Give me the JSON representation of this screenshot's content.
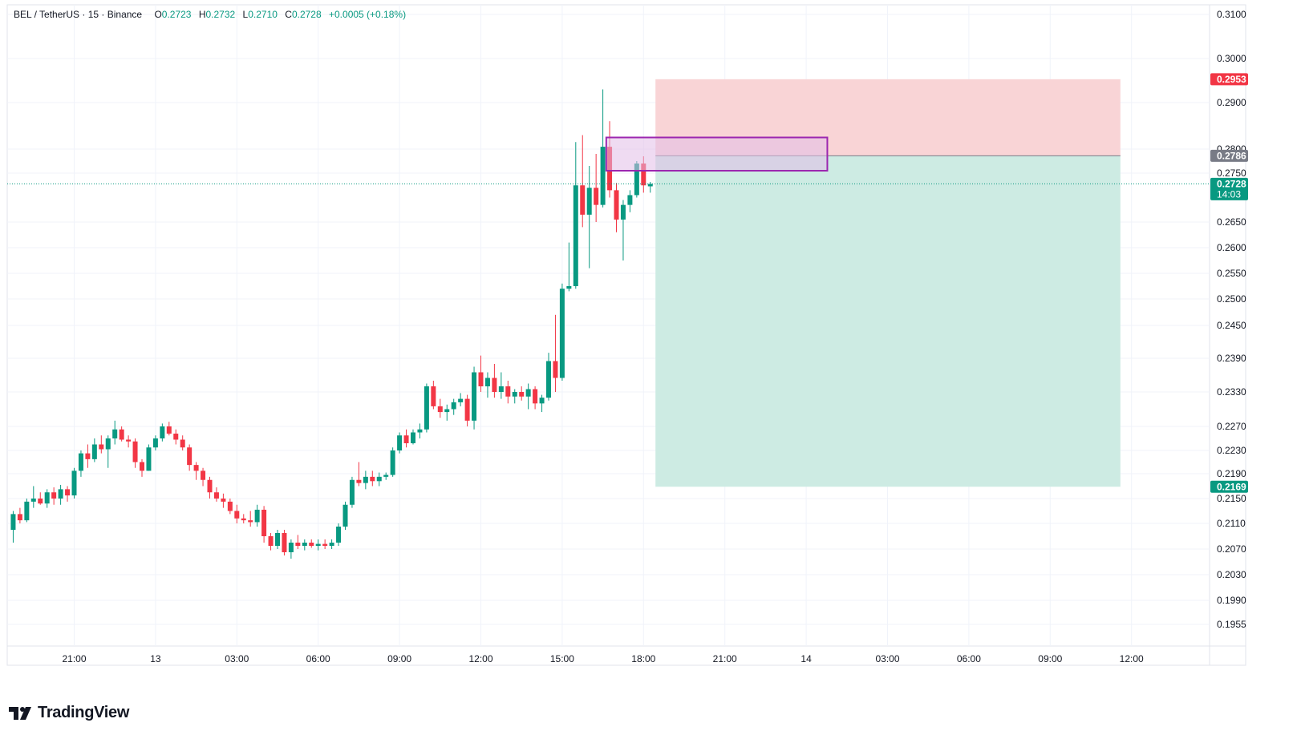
{
  "header": {
    "symbol": "BEL / TetherUS · 15 · Binance",
    "open_key": "O",
    "open": "0.2723",
    "high_key": "H",
    "high": "0.2732",
    "low_key": "L",
    "low": "0.2710",
    "close_key": "C",
    "close": "0.2728",
    "change": "+0.0005 (+0.18%)"
  },
  "brand": {
    "name": "TradingView",
    "icon": "tradingview-logo-icon"
  },
  "colors": {
    "up": "#089981",
    "down": "#f23645",
    "grid": "#f0f3fa",
    "stop_zone": "#f9d4d6",
    "target_zone": "#cdebe3",
    "box_border": "#9c27b0",
    "box_fill": "#e1bee7",
    "entry_badge": "#787b86"
  },
  "chart_data": {
    "type": "candlestick",
    "symbol": "BEL / TetherUS",
    "interval": "15",
    "exchange": "Binance",
    "ohlc_legend": {
      "open": 0.2723,
      "high": 0.2732,
      "low": 0.271,
      "close": 0.2728,
      "change": 0.0005,
      "change_pct": 0.18
    },
    "y_axis": {
      "ticks": [
        "0.3100",
        "0.3000",
        "0.2900",
        "0.2800",
        "0.2750",
        "0.2650",
        "0.2600",
        "0.2550",
        "0.2500",
        "0.2450",
        "0.2390",
        "0.2330",
        "0.2270",
        "0.2230",
        "0.2190",
        "0.2150",
        "0.2110",
        "0.2070",
        "0.2030",
        "0.1990",
        "0.1955"
      ],
      "position": "right"
    },
    "x_axis": {
      "ticks": [
        {
          "label": "21:00",
          "t": 0
        },
        {
          "label": "13",
          "t": 12
        },
        {
          "label": "03:00",
          "t": 24
        },
        {
          "label": "06:00",
          "t": 36
        },
        {
          "label": "09:00",
          "t": 48
        },
        {
          "label": "12:00",
          "t": 60
        },
        {
          "label": "15:00",
          "t": 72
        },
        {
          "label": "18:00",
          "t": 84
        },
        {
          "label": "21:00",
          "t": 96
        },
        {
          "label": "14",
          "t": 108
        },
        {
          "label": "03:00",
          "t": 120
        },
        {
          "label": "06:00",
          "t": 132
        },
        {
          "label": "09:00",
          "t": 144
        },
        {
          "label": "12:00",
          "t": 156
        }
      ]
    },
    "candles": [
      {
        "t": -10,
        "o": 0.208,
        "h": 0.2105,
        "l": 0.206,
        "c": 0.21
      },
      {
        "t": -9,
        "o": 0.21,
        "h": 0.213,
        "l": 0.208,
        "c": 0.2125
      },
      {
        "t": -8,
        "o": 0.2125,
        "h": 0.2135,
        "l": 0.211,
        "c": 0.2115
      },
      {
        "t": -7,
        "o": 0.2115,
        "h": 0.215,
        "l": 0.2112,
        "c": 0.2145
      },
      {
        "t": -6,
        "o": 0.2145,
        "h": 0.217,
        "l": 0.2135,
        "c": 0.215
      },
      {
        "t": -5,
        "o": 0.215,
        "h": 0.216,
        "l": 0.214,
        "c": 0.2142
      },
      {
        "t": -4,
        "o": 0.2142,
        "h": 0.2165,
        "l": 0.2135,
        "c": 0.216
      },
      {
        "t": -3,
        "o": 0.216,
        "h": 0.2168,
        "l": 0.214,
        "c": 0.215
      },
      {
        "t": -2,
        "o": 0.215,
        "h": 0.2172,
        "l": 0.214,
        "c": 0.2165
      },
      {
        "t": -1,
        "o": 0.2165,
        "h": 0.217,
        "l": 0.2145,
        "c": 0.2155
      },
      {
        "t": 0,
        "o": 0.2155,
        "h": 0.22,
        "l": 0.215,
        "c": 0.2195
      },
      {
        "t": 1,
        "o": 0.2195,
        "h": 0.223,
        "l": 0.2185,
        "c": 0.2225
      },
      {
        "t": 2,
        "o": 0.2225,
        "h": 0.224,
        "l": 0.22,
        "c": 0.2215
      },
      {
        "t": 3,
        "o": 0.2215,
        "h": 0.225,
        "l": 0.221,
        "c": 0.224
      },
      {
        "t": 4,
        "o": 0.224,
        "h": 0.2255,
        "l": 0.2225,
        "c": 0.2232
      },
      {
        "t": 5,
        "o": 0.2232,
        "h": 0.2255,
        "l": 0.22,
        "c": 0.225
      },
      {
        "t": 6,
        "o": 0.225,
        "h": 0.228,
        "l": 0.224,
        "c": 0.2265
      },
      {
        "t": 7,
        "o": 0.2265,
        "h": 0.227,
        "l": 0.2245,
        "c": 0.2248
      },
      {
        "t": 8,
        "o": 0.2248,
        "h": 0.2255,
        "l": 0.2235,
        "c": 0.2245
      },
      {
        "t": 9,
        "o": 0.2245,
        "h": 0.225,
        "l": 0.22,
        "c": 0.221
      },
      {
        "t": 10,
        "o": 0.221,
        "h": 0.2215,
        "l": 0.2185,
        "c": 0.2195
      },
      {
        "t": 11,
        "o": 0.2195,
        "h": 0.224,
        "l": 0.2195,
        "c": 0.2235
      },
      {
        "t": 12,
        "o": 0.2235,
        "h": 0.2255,
        "l": 0.223,
        "c": 0.225
      },
      {
        "t": 13,
        "o": 0.225,
        "h": 0.2275,
        "l": 0.2245,
        "c": 0.227
      },
      {
        "t": 14,
        "o": 0.227,
        "h": 0.2278,
        "l": 0.2255,
        "c": 0.2258
      },
      {
        "t": 15,
        "o": 0.2258,
        "h": 0.2265,
        "l": 0.224,
        "c": 0.2248
      },
      {
        "t": 16,
        "o": 0.2248,
        "h": 0.2255,
        "l": 0.223,
        "c": 0.2235
      },
      {
        "t": 17,
        "o": 0.2235,
        "h": 0.224,
        "l": 0.2195,
        "c": 0.2205
      },
      {
        "t": 18,
        "o": 0.2205,
        "h": 0.221,
        "l": 0.218,
        "c": 0.2195
      },
      {
        "t": 19,
        "o": 0.2195,
        "h": 0.22,
        "l": 0.217,
        "c": 0.218
      },
      {
        "t": 20,
        "o": 0.218,
        "h": 0.2185,
        "l": 0.215,
        "c": 0.216
      },
      {
        "t": 21,
        "o": 0.216,
        "h": 0.2168,
        "l": 0.2145,
        "c": 0.215
      },
      {
        "t": 22,
        "o": 0.215,
        "h": 0.2158,
        "l": 0.2135,
        "c": 0.2145
      },
      {
        "t": 23,
        "o": 0.2145,
        "h": 0.215,
        "l": 0.2125,
        "c": 0.213
      },
      {
        "t": 24,
        "o": 0.213,
        "h": 0.214,
        "l": 0.211,
        "c": 0.2118
      },
      {
        "t": 25,
        "o": 0.2118,
        "h": 0.2125,
        "l": 0.211,
        "c": 0.2115
      },
      {
        "t": 26,
        "o": 0.2115,
        "h": 0.213,
        "l": 0.2105,
        "c": 0.2112
      },
      {
        "t": 27,
        "o": 0.2112,
        "h": 0.214,
        "l": 0.2105,
        "c": 0.2132
      },
      {
        "t": 28,
        "o": 0.2132,
        "h": 0.2138,
        "l": 0.208,
        "c": 0.209
      },
      {
        "t": 29,
        "o": 0.209,
        "h": 0.2095,
        "l": 0.2068,
        "c": 0.2075
      },
      {
        "t": 30,
        "o": 0.2075,
        "h": 0.21,
        "l": 0.207,
        "c": 0.2095
      },
      {
        "t": 31,
        "o": 0.2095,
        "h": 0.21,
        "l": 0.206,
        "c": 0.2065
      },
      {
        "t": 32,
        "o": 0.2065,
        "h": 0.2085,
        "l": 0.2055,
        "c": 0.208
      },
      {
        "t": 33,
        "o": 0.208,
        "h": 0.2092,
        "l": 0.207,
        "c": 0.2075
      },
      {
        "t": 34,
        "o": 0.2075,
        "h": 0.2085,
        "l": 0.2068,
        "c": 0.208
      },
      {
        "t": 35,
        "o": 0.208,
        "h": 0.2085,
        "l": 0.2072,
        "c": 0.2075
      },
      {
        "t": 36,
        "o": 0.2075,
        "h": 0.2085,
        "l": 0.2068,
        "c": 0.2078
      },
      {
        "t": 37,
        "o": 0.2078,
        "h": 0.2085,
        "l": 0.207,
        "c": 0.2075
      },
      {
        "t": 38,
        "o": 0.2075,
        "h": 0.2085,
        "l": 0.207,
        "c": 0.208
      },
      {
        "t": 39,
        "o": 0.208,
        "h": 0.211,
        "l": 0.2075,
        "c": 0.2105
      },
      {
        "t": 40,
        "o": 0.2105,
        "h": 0.2145,
        "l": 0.21,
        "c": 0.214
      },
      {
        "t": 41,
        "o": 0.214,
        "h": 0.2185,
        "l": 0.2135,
        "c": 0.218
      },
      {
        "t": 42,
        "o": 0.218,
        "h": 0.221,
        "l": 0.217,
        "c": 0.2175
      },
      {
        "t": 43,
        "o": 0.2175,
        "h": 0.2195,
        "l": 0.2165,
        "c": 0.2185
      },
      {
        "t": 44,
        "o": 0.2185,
        "h": 0.2195,
        "l": 0.217,
        "c": 0.2178
      },
      {
        "t": 45,
        "o": 0.2178,
        "h": 0.2192,
        "l": 0.217,
        "c": 0.2185
      },
      {
        "t": 46,
        "o": 0.2185,
        "h": 0.2192,
        "l": 0.218,
        "c": 0.2188
      },
      {
        "t": 47,
        "o": 0.2188,
        "h": 0.2235,
        "l": 0.2185,
        "c": 0.223
      },
      {
        "t": 48,
        "o": 0.223,
        "h": 0.226,
        "l": 0.2225,
        "c": 0.2255
      },
      {
        "t": 49,
        "o": 0.2255,
        "h": 0.2265,
        "l": 0.2235,
        "c": 0.2242
      },
      {
        "t": 50,
        "o": 0.2242,
        "h": 0.2265,
        "l": 0.224,
        "c": 0.226
      },
      {
        "t": 51,
        "o": 0.226,
        "h": 0.2275,
        "l": 0.225,
        "c": 0.2265
      },
      {
        "t": 52,
        "o": 0.2265,
        "h": 0.2345,
        "l": 0.226,
        "c": 0.234
      },
      {
        "t": 53,
        "o": 0.234,
        "h": 0.235,
        "l": 0.23,
        "c": 0.2305
      },
      {
        "t": 54,
        "o": 0.2305,
        "h": 0.2318,
        "l": 0.2285,
        "c": 0.2295
      },
      {
        "t": 55,
        "o": 0.2295,
        "h": 0.2308,
        "l": 0.228,
        "c": 0.23
      },
      {
        "t": 56,
        "o": 0.23,
        "h": 0.2318,
        "l": 0.229,
        "c": 0.2312
      },
      {
        "t": 57,
        "o": 0.2312,
        "h": 0.2328,
        "l": 0.2305,
        "c": 0.2318
      },
      {
        "t": 58,
        "o": 0.2318,
        "h": 0.2325,
        "l": 0.227,
        "c": 0.228
      },
      {
        "t": 59,
        "o": 0.228,
        "h": 0.2375,
        "l": 0.2265,
        "c": 0.2365
      },
      {
        "t": 60,
        "o": 0.2365,
        "h": 0.2395,
        "l": 0.233,
        "c": 0.234
      },
      {
        "t": 61,
        "o": 0.234,
        "h": 0.2365,
        "l": 0.232,
        "c": 0.2355
      },
      {
        "t": 62,
        "o": 0.2355,
        "h": 0.238,
        "l": 0.232,
        "c": 0.233
      },
      {
        "t": 63,
        "o": 0.233,
        "h": 0.2365,
        "l": 0.2318,
        "c": 0.234
      },
      {
        "t": 64,
        "o": 0.234,
        "h": 0.235,
        "l": 0.231,
        "c": 0.2322
      },
      {
        "t": 65,
        "o": 0.2322,
        "h": 0.2335,
        "l": 0.231,
        "c": 0.233
      },
      {
        "t": 66,
        "o": 0.233,
        "h": 0.234,
        "l": 0.2315,
        "c": 0.2322
      },
      {
        "t": 67,
        "o": 0.2322,
        "h": 0.2345,
        "l": 0.23,
        "c": 0.2335
      },
      {
        "t": 68,
        "o": 0.2335,
        "h": 0.234,
        "l": 0.23,
        "c": 0.231
      },
      {
        "t": 69,
        "o": 0.231,
        "h": 0.2325,
        "l": 0.2295,
        "c": 0.232
      },
      {
        "t": 70,
        "o": 0.232,
        "h": 0.24,
        "l": 0.2315,
        "c": 0.2385
      },
      {
        "t": 71,
        "o": 0.2385,
        "h": 0.247,
        "l": 0.233,
        "c": 0.2355
      },
      {
        "t": 72,
        "o": 0.2355,
        "h": 0.253,
        "l": 0.235,
        "c": 0.252
      },
      {
        "t": 73,
        "o": 0.252,
        "h": 0.261,
        "l": 0.2515,
        "c": 0.2525
      },
      {
        "t": 74,
        "o": 0.2525,
        "h": 0.2815,
        "l": 0.252,
        "c": 0.2725
      },
      {
        "t": 75,
        "o": 0.2725,
        "h": 0.283,
        "l": 0.264,
        "c": 0.2665
      },
      {
        "t": 76,
        "o": 0.2665,
        "h": 0.2765,
        "l": 0.256,
        "c": 0.272
      },
      {
        "t": 77,
        "o": 0.272,
        "h": 0.279,
        "l": 0.265,
        "c": 0.2685
      },
      {
        "t": 78,
        "o": 0.2685,
        "h": 0.293,
        "l": 0.268,
        "c": 0.2805
      },
      {
        "t": 79,
        "o": 0.2805,
        "h": 0.286,
        "l": 0.27,
        "c": 0.2715
      },
      {
        "t": 80,
        "o": 0.2715,
        "h": 0.273,
        "l": 0.263,
        "c": 0.2655
      },
      {
        "t": 81,
        "o": 0.2655,
        "h": 0.2695,
        "l": 0.2575,
        "c": 0.2685
      },
      {
        "t": 82,
        "o": 0.2685,
        "h": 0.2715,
        "l": 0.267,
        "c": 0.2705
      },
      {
        "t": 83,
        "o": 0.2705,
        "h": 0.2775,
        "l": 0.27,
        "c": 0.277
      },
      {
        "t": 84,
        "o": 0.277,
        "h": 0.2785,
        "l": 0.271,
        "c": 0.2725
      },
      {
        "t": 85,
        "o": 0.2723,
        "h": 0.2732,
        "l": 0.271,
        "c": 0.2728
      }
    ],
    "current_price": {
      "value": 0.2728,
      "label": "0.2728",
      "countdown": "14:03"
    },
    "position_tool": {
      "side": "short",
      "entry": 0.2786,
      "entry_label": "0.2786",
      "stop": 0.2953,
      "stop_label": "0.2953",
      "target": 0.2169,
      "target_label": "0.2169",
      "t_start": 86,
      "t_end": 154
    },
    "highlight_box": {
      "top": 0.2825,
      "bottom": 0.2755,
      "t_start": 78.5,
      "t_end": 111
    },
    "grid": true
  }
}
